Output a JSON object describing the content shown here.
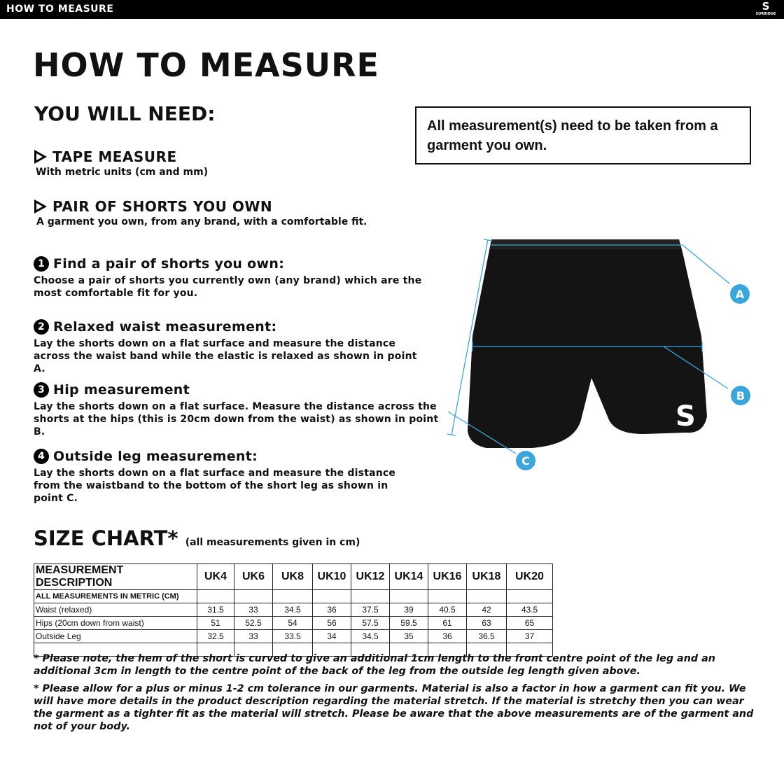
{
  "header": {
    "title": "HOW TO MEASURE",
    "logo_text": "SURRIDGE"
  },
  "page_title": "HOW TO MEASURE",
  "you_will_need": {
    "heading": "YOU WILL NEED:",
    "items": [
      {
        "title": "TAPE MEASURE",
        "desc": "With metric units (cm and mm)"
      },
      {
        "title": "PAIR OF SHORTS YOU OWN",
        "desc": "A garment you own, from any brand, with a comfortable fit."
      }
    ]
  },
  "notice": "All measurement(s) need to be taken from a garment you own.",
  "steps": [
    {
      "num": "1",
      "title": "Find a pair of shorts you own:",
      "desc": "Choose a pair of shorts you currently own (any brand) which are the most comfortable fit for you."
    },
    {
      "num": "2",
      "title": "Relaxed waist measurement:",
      "desc": "Lay the shorts down on a flat surface and measure the distance across the waist band while the elastic is relaxed as shown in point A."
    },
    {
      "num": "3",
      "title": "Hip measurement",
      "desc": "Lay the shorts down on a flat surface. Measure the distance across the shorts at the hips (this is 20cm down from the waist)  as shown in point B."
    },
    {
      "num": "4",
      "title": "Outside leg measurement:",
      "desc": "Lay the shorts down on a flat surface and measure the distance from the waistband to the bottom of the short leg as shown in point C."
    }
  ],
  "diagram": {
    "points": [
      "A",
      "B",
      "C"
    ],
    "accent": "#3aa6dc"
  },
  "size_chart": {
    "title": "SIZE CHART*",
    "subtitle": "(all measurements given in cm)",
    "headers": [
      "MEASUREMENT DESCRIPTION",
      "UK4",
      "UK6",
      "UK8",
      "UK10",
      "UK12",
      "UK14",
      "UK16",
      "UK18",
      "UK20"
    ],
    "subheader": "ALL MEASUREMENTS IN METRIC (CM)",
    "rows": [
      [
        "Waist (relaxed)",
        "31.5",
        "33",
        "34.5",
        "36",
        "37.5",
        "39",
        "40.5",
        "42",
        "43.5"
      ],
      [
        "Hips (20cm down from waist)",
        "51",
        "52.5",
        "54",
        "56",
        "57.5",
        "59.5",
        "61",
        "63",
        "65"
      ],
      [
        "Outside Leg",
        "32.5",
        "33",
        "33.5",
        "34",
        "34.5",
        "35",
        "36",
        "36.5",
        "37"
      ]
    ]
  },
  "footnotes": [
    "* Please note, the hem of the short is curved to give an additional 1cm length to the front centre point of the leg and an additional 3cm in length to the centre point of the back of the leg from the outside leg length given above.",
    "* Please allow for a plus or minus 1-2 cm tolerance in our garments. Material is also a factor in how a garment can fit you. We will have more details in the product description regarding the material stretch.  If the material is stretchy then you can wear the garment as a tighter fit as the material will stretch.  Please be aware that the above measurements are of the garment and not of your body."
  ]
}
